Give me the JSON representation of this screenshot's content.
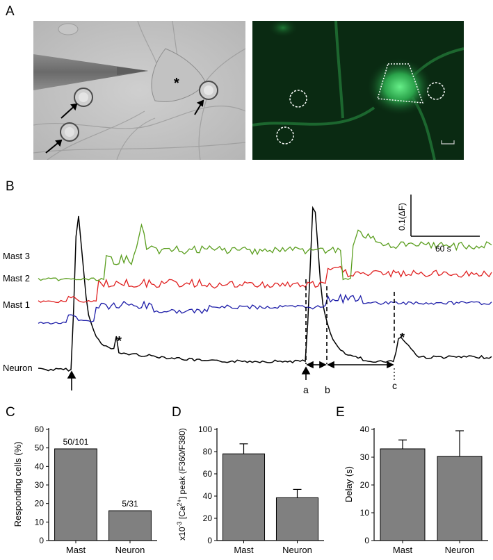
{
  "panels": {
    "a": "A",
    "b": "B",
    "c": "C",
    "d": "D",
    "e": "E"
  },
  "colors": {
    "mast3": "#5a9e1e",
    "mast2": "#e02020",
    "mast1": "#1c1ca8",
    "neuron": "#000000",
    "bar": "#808080",
    "fluor_bg": "#0a2a12"
  },
  "panel_a": {
    "asterisk": "*"
  },
  "panel_b": {
    "trace_labels": [
      "Mast 3",
      "Mast 2",
      "Mast 1",
      "Neuron"
    ],
    "scale_y": "0.1(ΔF)",
    "scale_x": "60 s",
    "markers": [
      "a",
      "b",
      "c"
    ],
    "asterisk": "*"
  },
  "chart_data": [
    {
      "type": "bar",
      "title": "",
      "ylabel": "Responding cells (%)",
      "categories": [
        "Mast",
        "Neuron"
      ],
      "values": [
        49.5,
        16.1
      ],
      "data_labels": [
        "50/101",
        "5/31"
      ],
      "ylim": [
        0,
        60
      ],
      "yticks": [
        "0",
        "10",
        "20",
        "30",
        "40",
        "50",
        "60"
      ]
    },
    {
      "type": "bar",
      "title": "",
      "ylabel": "x10-3 [Ca2+] peak (F360/F380)",
      "categories": [
        "Mast",
        "Neuron"
      ],
      "values": [
        78,
        38.5
      ],
      "errors": [
        9,
        7.5
      ],
      "ylim": [
        0,
        100
      ],
      "yticks": [
        "0",
        "20",
        "40",
        "60",
        "80",
        "100"
      ]
    },
    {
      "type": "bar",
      "title": "",
      "ylabel": "Delay (s)",
      "categories": [
        "Mast",
        "Neuron"
      ],
      "values": [
        33,
        30.3
      ],
      "errors": [
        3.2,
        9.2
      ],
      "ylim": [
        0,
        40
      ],
      "yticks": [
        "0",
        "10",
        "20",
        "30",
        "40"
      ]
    }
  ]
}
